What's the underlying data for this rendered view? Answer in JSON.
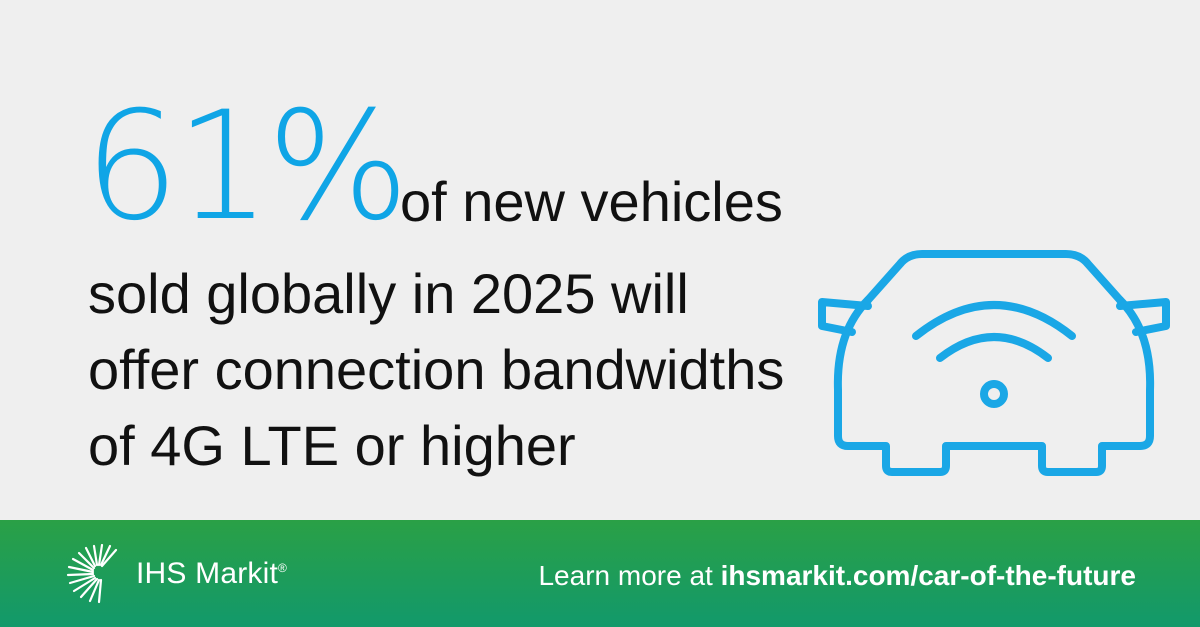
{
  "headline": {
    "stat": "61%",
    "line1": "of new vehicles",
    "lines": [
      "sold globally in 2025 will",
      "offer connection bandwidths",
      "of 4G LTE or higher"
    ]
  },
  "footer": {
    "brand": "IHS Markit",
    "trademark": "®",
    "learn_prefix": "Learn more at ",
    "learn_url": "ihsmarkit.com/car-of-the-future"
  },
  "icons": {
    "car": "connected-car-icon",
    "logo": "ihs-markit-logo"
  },
  "colors": {
    "accent": "#0fa5e6",
    "text": "#111111",
    "background": "#efefef",
    "footer_start": "#2aa046",
    "footer_end": "#12996b"
  }
}
